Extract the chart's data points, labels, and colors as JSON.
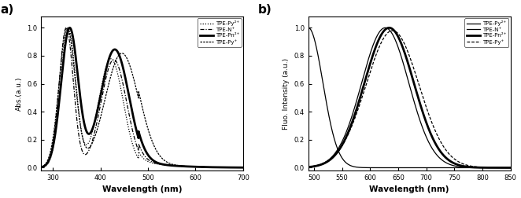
{
  "panel_a": {
    "xlabel": "Wavelength (nm)",
    "ylabel": "Abs.(a.u.)",
    "xlim": [
      275,
      700
    ],
    "ylim": [
      -0.02,
      1.08
    ],
    "xticks": [
      300,
      400,
      500,
      600,
      700
    ],
    "yticks": [
      0.0,
      0.2,
      0.4,
      0.6,
      0.8,
      1.0
    ],
    "legend": [
      "TPE-Py²⁺",
      "TPE-N⁺",
      "TPE-Pn²⁺",
      "TPE-Py⁺"
    ]
  },
  "panel_b": {
    "xlabel": "Wavelength (nm)",
    "ylabel": "Fluo. Intensity (a.u.)",
    "xlim": [
      490,
      850
    ],
    "ylim": [
      -0.02,
      1.08
    ],
    "xticks": [
      500,
      550,
      600,
      650,
      700,
      750,
      800,
      850
    ],
    "yticks": [
      0.0,
      0.2,
      0.4,
      0.6,
      0.8,
      1.0
    ],
    "legend": [
      "TPE-Py²⁺",
      "TPE-N⁺",
      "TPE-Pn²⁺",
      "TPE-Py⁺"
    ]
  },
  "background_color": "#ffffff"
}
